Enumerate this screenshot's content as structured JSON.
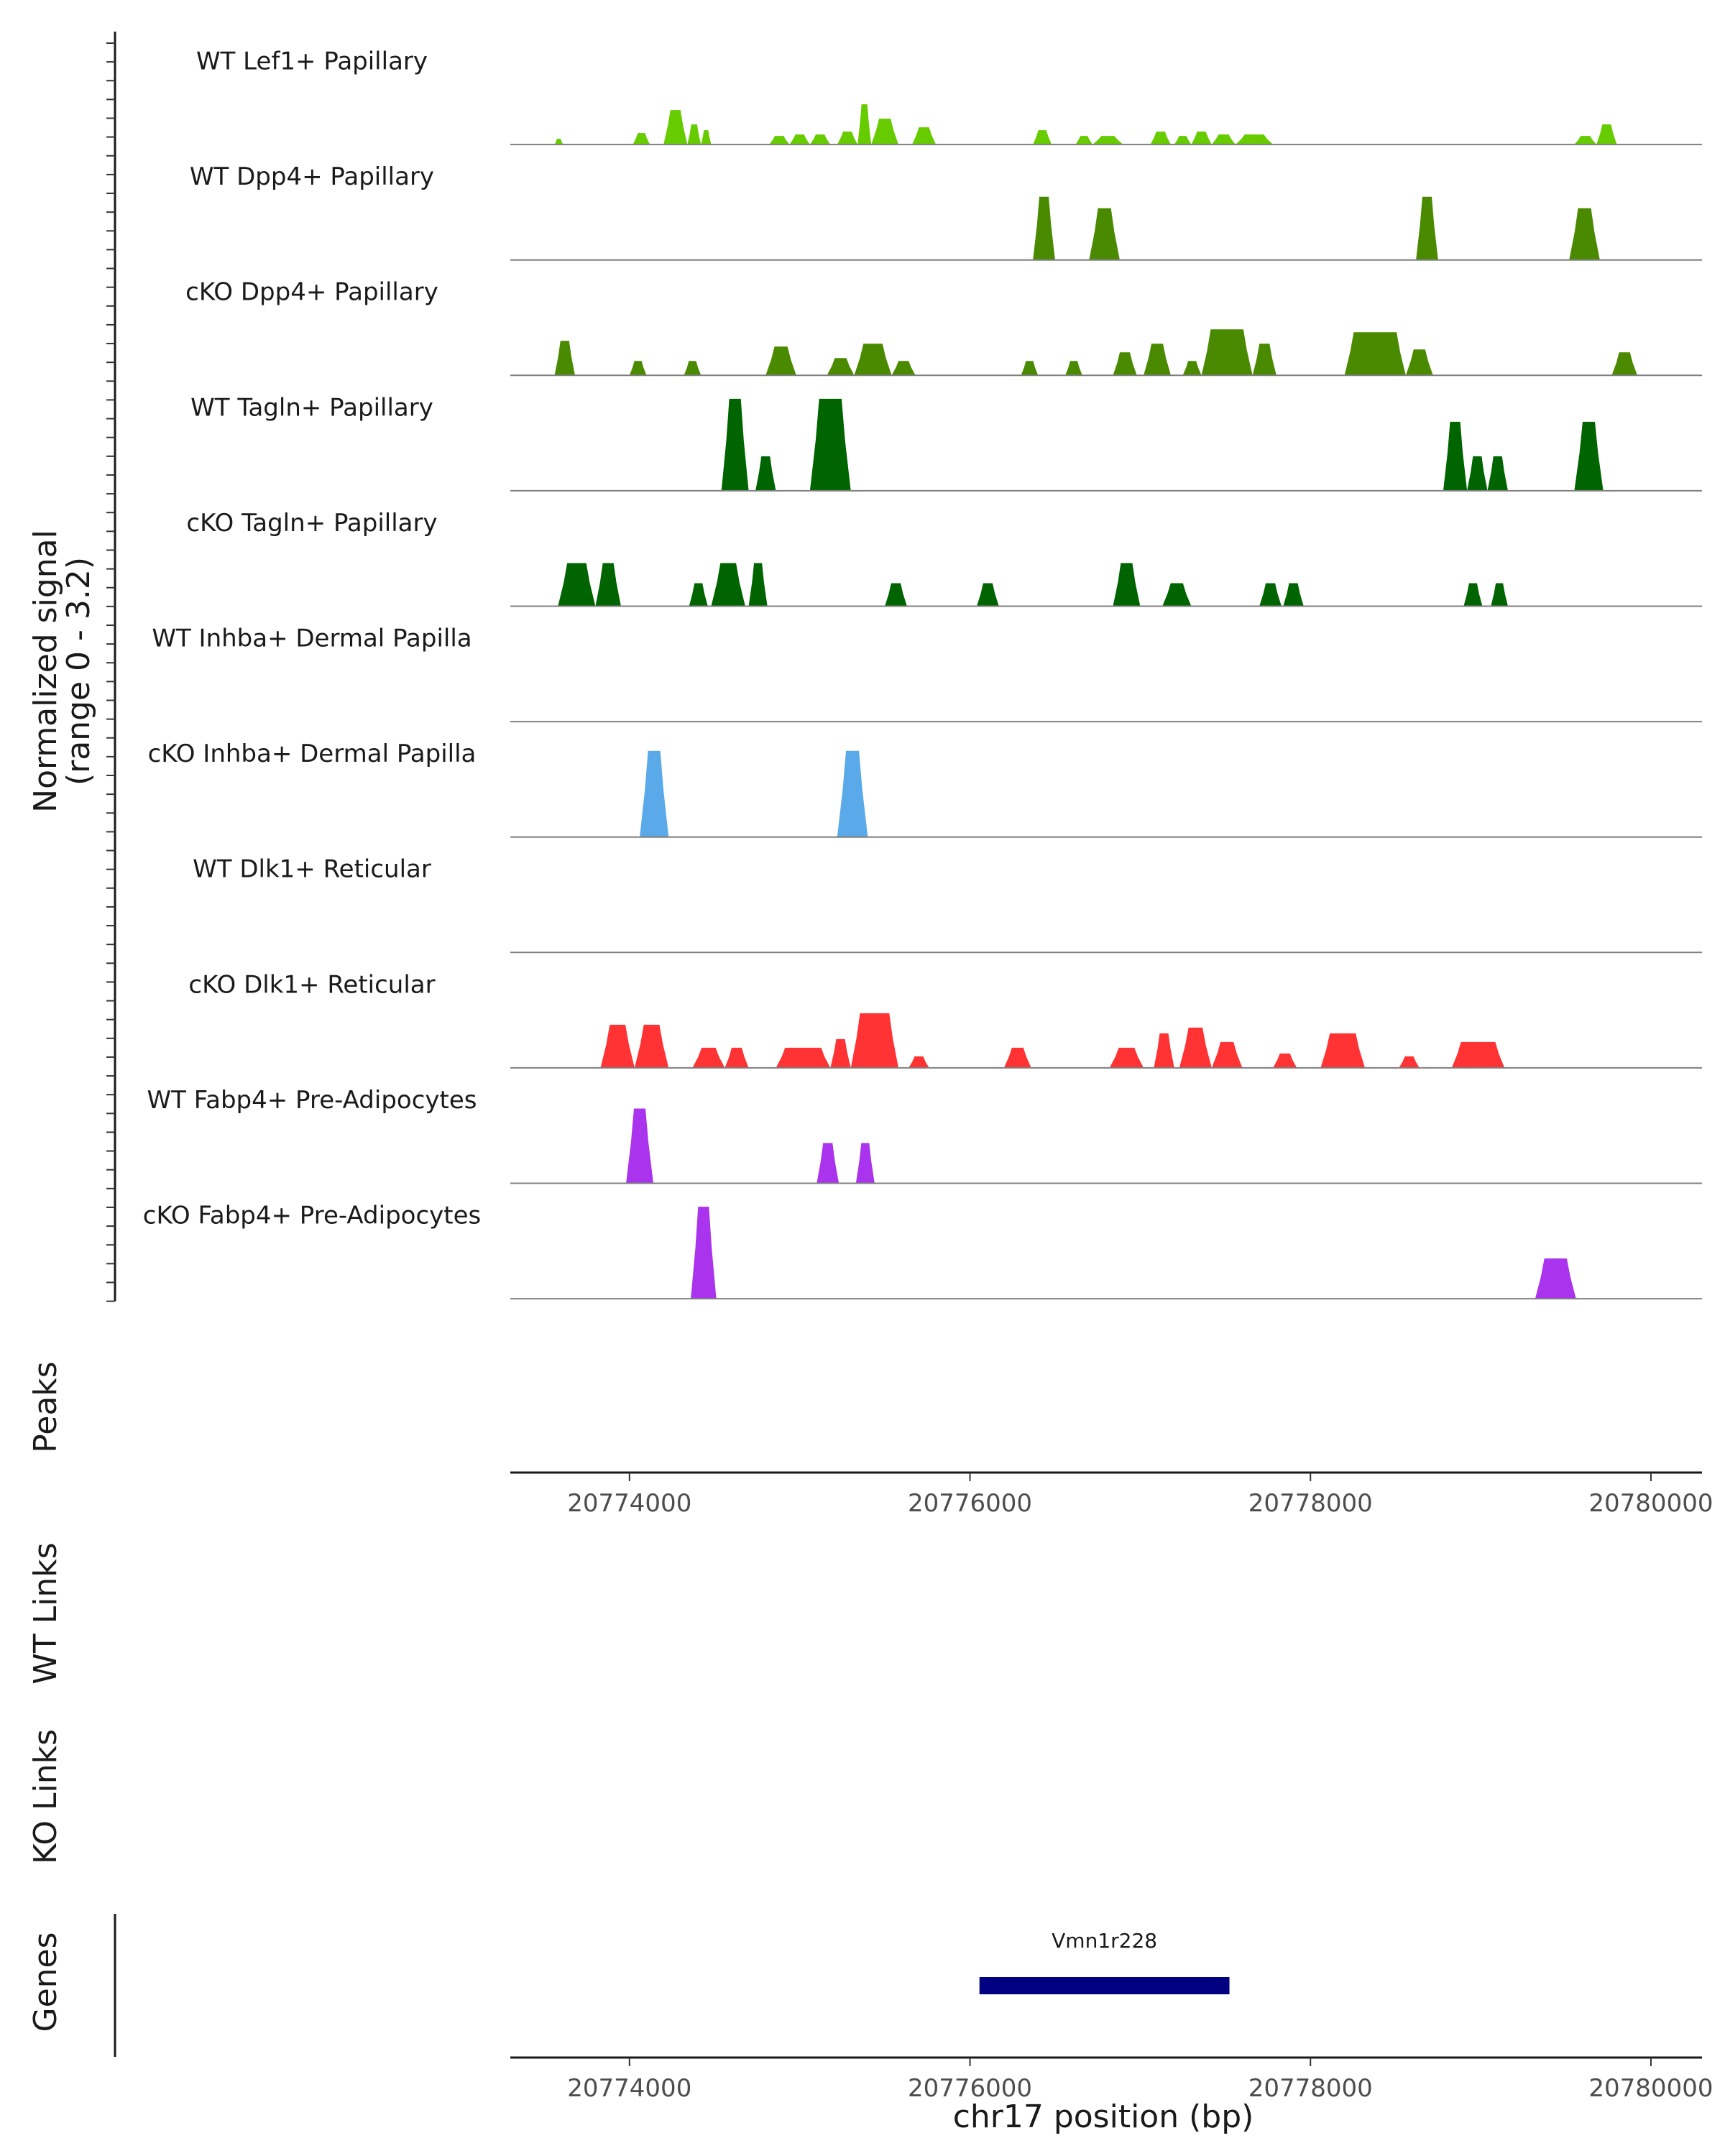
{
  "chart_data": {
    "type": "area",
    "title": "",
    "chromosome": "chr17",
    "xlabel": "chr17 position (bp)",
    "xlim": [
      20773300,
      20780300
    ],
    "x_ticks": [
      20774000,
      20776000,
      20778000,
      20780000
    ],
    "x_tick_labels": [
      "20774000",
      "20776000",
      "20778000",
      "20780000"
    ],
    "ylabel_line1": "Normalized signal",
    "ylabel_line2": "(range 0 - 3.2)",
    "ylim": [
      0,
      3.2
    ],
    "panel_labels": {
      "peaks": "Peaks",
      "wt_links": "WT Links",
      "ko_links": "KO Links",
      "genes": "Genes"
    },
    "series": [
      {
        "name": "WT Lef1+ Papillary",
        "color": "#66cc00",
        "peaks": [
          [
            20773560,
            20773610,
            0.2
          ],
          [
            20774020,
            20774120,
            0.4
          ],
          [
            20774200,
            20774340,
            1.2
          ],
          [
            20774340,
            20774420,
            0.7
          ],
          [
            20774420,
            20774480,
            0.5
          ],
          [
            20774820,
            20774940,
            0.3
          ],
          [
            20774940,
            20775060,
            0.35
          ],
          [
            20775060,
            20775180,
            0.35
          ],
          [
            20775220,
            20775340,
            0.45
          ],
          [
            20775340,
            20775420,
            1.4
          ],
          [
            20775420,
            20775580,
            0.9
          ],
          [
            20775660,
            20775800,
            0.6
          ],
          [
            20776370,
            20776480,
            0.5
          ],
          [
            20776620,
            20776720,
            0.3
          ],
          [
            20776720,
            20776900,
            0.3
          ],
          [
            20777060,
            20777180,
            0.45
          ],
          [
            20777200,
            20777300,
            0.3
          ],
          [
            20777300,
            20777420,
            0.45
          ],
          [
            20777420,
            20777560,
            0.35
          ],
          [
            20777560,
            20777780,
            0.35
          ],
          [
            20779550,
            20779680,
            0.3
          ],
          [
            20779680,
            20779800,
            0.7
          ]
        ]
      },
      {
        "name": "WT Dpp4+ Papillary",
        "color": "#4a8a00",
        "peaks": [
          [
            20776370,
            20776500,
            2.2
          ],
          [
            20776700,
            20776880,
            1.8
          ],
          [
            20778620,
            20778750,
            2.2
          ],
          [
            20779520,
            20779700,
            1.8
          ]
        ]
      },
      {
        "name": "cKO Dpp4+ Papillary",
        "color": "#4a8a00",
        "peaks": [
          [
            20773560,
            20773680,
            1.2
          ],
          [
            20774000,
            20774100,
            0.5
          ],
          [
            20774320,
            20774420,
            0.5
          ],
          [
            20774800,
            20774980,
            1.0
          ],
          [
            20775160,
            20775320,
            0.6
          ],
          [
            20775320,
            20775540,
            1.1
          ],
          [
            20775540,
            20775680,
            0.5
          ],
          [
            20776300,
            20776400,
            0.5
          ],
          [
            20776560,
            20776660,
            0.5
          ],
          [
            20776840,
            20776980,
            0.8
          ],
          [
            20777020,
            20777180,
            1.1
          ],
          [
            20777250,
            20777360,
            0.5
          ],
          [
            20777360,
            20777660,
            1.6
          ],
          [
            20777660,
            20777800,
            1.1
          ],
          [
            20778200,
            20778560,
            1.5
          ],
          [
            20778560,
            20778720,
            0.9
          ],
          [
            20779770,
            20779920,
            0.8
          ]
        ]
      },
      {
        "name": "WT Tagln+ Papillary",
        "color": "#006400",
        "peaks": [
          [
            20774540,
            20774700,
            3.2
          ],
          [
            20774740,
            20774860,
            1.2
          ],
          [
            20775060,
            20775300,
            3.2
          ],
          [
            20778780,
            20778920,
            2.4
          ],
          [
            20778920,
            20779040,
            1.2
          ],
          [
            20779040,
            20779160,
            1.2
          ],
          [
            20779550,
            20779720,
            2.4
          ]
        ]
      },
      {
        "name": "cKO Tagln+ Papillary",
        "color": "#006400",
        "peaks": [
          [
            20773580,
            20773800,
            1.5
          ],
          [
            20773800,
            20773950,
            1.5
          ],
          [
            20774350,
            20774460,
            0.8
          ],
          [
            20774480,
            20774680,
            1.5
          ],
          [
            20774700,
            20774810,
            1.5
          ],
          [
            20775500,
            20775630,
            0.8
          ],
          [
            20776040,
            20776170,
            0.8
          ],
          [
            20776840,
            20777000,
            1.5
          ],
          [
            20777130,
            20777300,
            0.8
          ],
          [
            20777700,
            20777830,
            0.8
          ],
          [
            20777840,
            20777960,
            0.8
          ],
          [
            20778900,
            20779010,
            0.8
          ],
          [
            20779060,
            20779160,
            0.8
          ]
        ]
      },
      {
        "name": "WT Inhba+ Dermal Papilla",
        "color": "#66aaee",
        "peaks": []
      },
      {
        "name": "cKO Inhba+ Dermal Papilla",
        "color": "#5aaaea",
        "peaks": [
          [
            20774060,
            20774230,
            3.0
          ],
          [
            20775220,
            20775400,
            3.0
          ]
        ]
      },
      {
        "name": "WT Dlk1+ Reticular",
        "color": "#ff3333",
        "peaks": []
      },
      {
        "name": "cKO Dlk1+ Reticular",
        "color": "#ff3333",
        "peaks": [
          [
            20773830,
            20774030,
            1.5
          ],
          [
            20774030,
            20774230,
            1.5
          ],
          [
            20774370,
            20774560,
            0.7
          ],
          [
            20774560,
            20774700,
            0.7
          ],
          [
            20774860,
            20775180,
            0.7
          ],
          [
            20775180,
            20775300,
            1.0
          ],
          [
            20775300,
            20775580,
            1.9
          ],
          [
            20775640,
            20775760,
            0.4
          ],
          [
            20776200,
            20776360,
            0.7
          ],
          [
            20776820,
            20777020,
            0.7
          ],
          [
            20777080,
            20777200,
            1.2
          ],
          [
            20777230,
            20777420,
            1.4
          ],
          [
            20777420,
            20777600,
            0.9
          ],
          [
            20777780,
            20777920,
            0.5
          ],
          [
            20778060,
            20778320,
            1.2
          ],
          [
            20778520,
            20778640,
            0.4
          ],
          [
            20778830,
            20779140,
            0.9
          ]
        ]
      },
      {
        "name": "WT Fabp4+ Pre-Adipocytes",
        "color": "#aa33ee",
        "peaks": [
          [
            20773980,
            20774140,
            2.6
          ],
          [
            20775100,
            20775230,
            1.4
          ],
          [
            20775330,
            20775440,
            1.4
          ]
        ]
      },
      {
        "name": "cKO Fabp4+ Pre-Adipocytes",
        "color": "#aa33ee",
        "peaks": [
          [
            20774360,
            20774510,
            3.2
          ],
          [
            20779320,
            20779560,
            1.4
          ]
        ]
      }
    ],
    "genes": [
      {
        "name": "Vmn1r228",
        "start": 20776060,
        "end": 20777520,
        "color": "#000080"
      }
    ]
  }
}
